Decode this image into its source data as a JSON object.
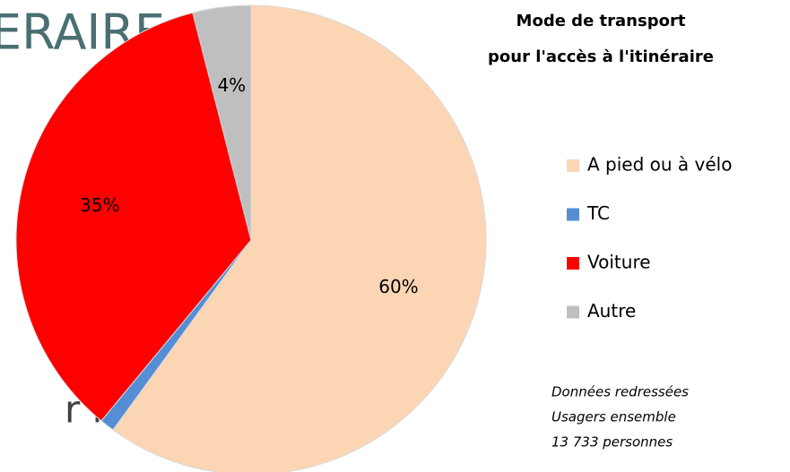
{
  "background_text": [
    "ERAIRE",
    "r le"
  ],
  "chart_data": {
    "type": "pie",
    "title": [
      "Mode de transport",
      "pour l'accès à l'itinéraire"
    ],
    "categories": [
      "A pied ou à vélo",
      "TC",
      "Voiture",
      "Autre"
    ],
    "values": [
      60,
      1,
      35,
      4
    ],
    "value_labels": [
      "60%",
      null,
      "35%",
      "4%"
    ],
    "colors": [
      "#fcd5b5",
      "#558ed5",
      "#ff0000",
      "#bfbfbf"
    ],
    "legend": "right",
    "annotations": [
      "Données redressées",
      "Usagers ensemble",
      "13 733 personnes"
    ]
  }
}
